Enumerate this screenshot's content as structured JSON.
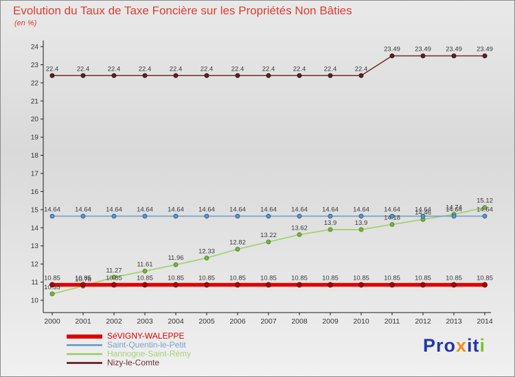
{
  "header": {
    "title": "Evolution du Taux de Taxe Foncière sur les Propriétés Non Bâties",
    "subtitle": "(en %)"
  },
  "chart_data": {
    "type": "line",
    "title": "Evolution du Taux de Taxe Foncière sur les Propriétés Non Bâties",
    "subtitle": "(en %)",
    "x": [
      2000,
      2001,
      2002,
      2003,
      2004,
      2005,
      2006,
      2007,
      2008,
      2009,
      2010,
      2011,
      2012,
      2013,
      2014
    ],
    "ylim": [
      10,
      24
    ],
    "ytick_step": 1,
    "grid": false,
    "legend_position": "bottom-left",
    "series": [
      {
        "name": "SéVIGNY-WALEPPE",
        "color": "#e10000",
        "marker_color": "#a90000",
        "marker_stroke": "#7d0000",
        "line_width": 5.5,
        "marker_radius": 3.5,
        "values": [
          10.85,
          10.85,
          10.85,
          10.85,
          10.85,
          10.85,
          10.85,
          10.85,
          10.85,
          10.85,
          10.85,
          10.85,
          10.85,
          10.85,
          10.85
        ]
      },
      {
        "name": "Saint-Quentin-le-Petit",
        "color": "#74a3cc",
        "marker_color": "#5e94c4",
        "marker_stroke": "#2f6496",
        "line_width": 1.8,
        "marker_radius": 3,
        "values": [
          14.64,
          14.64,
          14.64,
          14.64,
          14.64,
          14.64,
          14.64,
          14.64,
          14.64,
          14.64,
          14.64,
          14.64,
          14.64,
          14.64,
          14.64
        ]
      },
      {
        "name": "Hannogne-Saint-Rémy",
        "color": "#a4d174",
        "marker_color": "#79b244",
        "marker_stroke": "#578a2a",
        "line_width": 1.8,
        "marker_radius": 3,
        "values": [
          10.35,
          10.78,
          11.27,
          11.61,
          11.96,
          12.33,
          12.82,
          13.22,
          13.62,
          13.9,
          13.9,
          14.18,
          14.46,
          14.74,
          15.12
        ]
      },
      {
        "name": "Nizy-le-Comte",
        "color": "#6f2b2b",
        "marker_color": "#582222",
        "marker_stroke": "#3f1717",
        "line_width": 1.5,
        "marker_radius": 3,
        "values": [
          22.4,
          22.4,
          22.4,
          22.4,
          22.4,
          22.4,
          22.4,
          22.4,
          22.4,
          22.4,
          22.4,
          23.49,
          23.49,
          23.49,
          23.49
        ]
      }
    ]
  },
  "logo": {
    "parts": [
      {
        "text": "Pro",
        "color": "#2438a6"
      },
      {
        "text": "x",
        "color": "#f28c1e"
      },
      {
        "text": "it",
        "color": "#2438a6"
      },
      {
        "text": "i",
        "color": "#7ec229"
      }
    ]
  }
}
